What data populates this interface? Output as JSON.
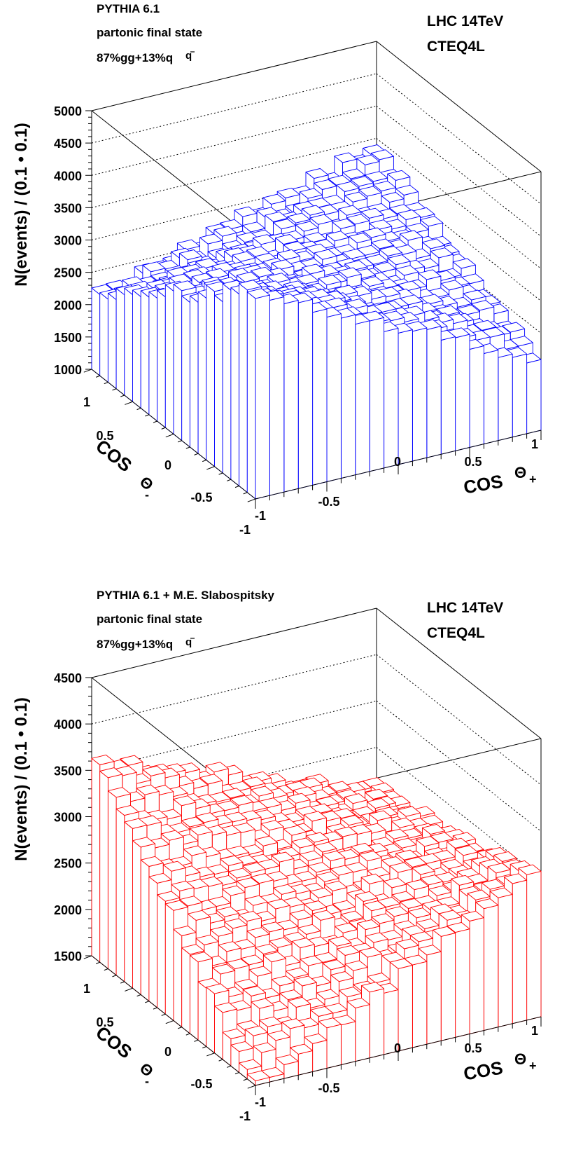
{
  "chart_data": [
    {
      "type": "lego3d",
      "labels": [
        "PYTHIA 6.1",
        "partonic final state",
        "87%gg+13%q",
        "q",
        "LHC 14TeV",
        "CTEQ4L"
      ],
      "ylabel": "N(events) / (0.1 • 0.1)",
      "xaxis": {
        "label": "COS",
        "symbol": "Θ",
        "subscript": "+",
        "ticks": [
          -1,
          -0.5,
          0,
          0.5,
          1
        ],
        "ticklabels": [
          "-1",
          "-0.5",
          "0",
          "0.5",
          "1"
        ]
      },
      "yaxis": {
        "label": "COS",
        "symbol": "Θ",
        "subscript": "-",
        "ticks": [
          -1,
          -0.5,
          0,
          0.5,
          1
        ],
        "ticklabels": [
          "-1",
          "-0.5",
          "0",
          "0.5",
          "1"
        ]
      },
      "zaxis": {
        "range": [
          1000,
          5000
        ],
        "ticks": [
          1000,
          1500,
          2000,
          2500,
          3000,
          3500,
          4000,
          4500,
          5000
        ],
        "ticklabels": [
          "1000",
          "1500",
          "2000",
          "2500",
          "3000",
          "3500",
          "4000",
          "4500",
          "5000"
        ]
      },
      "bins": {
        "nx": 20,
        "ny": 20,
        "range": [
          -1,
          1
        ]
      },
      "surface": {
        "type": "saddle",
        "base": 2980,
        "a": -200,
        "b": -180,
        "c": 900,
        "noise": 200,
        "seed": 7
      },
      "color": "#0000ff",
      "grid": true
    },
    {
      "type": "lego3d",
      "labels": [
        "PYTHIA 6.1 + M.E. Slabospitsky",
        "partonic final state",
        "87%gg+13%q",
        "q",
        "LHC 14TeV",
        "CTEQ4L"
      ],
      "ylabel": "N(events) / (0.1 • 0.1)",
      "xaxis": {
        "label": "COS",
        "symbol": "Θ",
        "subscript": "+",
        "ticks": [
          -1,
          -0.5,
          0,
          0.5,
          1
        ],
        "ticklabels": [
          "-1",
          "-0.5",
          "0",
          "0.5",
          "1"
        ]
      },
      "yaxis": {
        "label": "COS",
        "symbol": "Θ",
        "subscript": "-",
        "ticks": [
          -1,
          -0.5,
          0,
          0.5,
          1
        ],
        "ticklabels": [
          "-1",
          "-0.5",
          "0",
          "0.5",
          "1"
        ]
      },
      "zaxis": {
        "range": [
          1500,
          4500
        ],
        "ticks": [
          1500,
          2000,
          2500,
          3000,
          3500,
          4000,
          4500
        ],
        "ticklabels": [
          "1500",
          "2000",
          "2500",
          "3000",
          "3500",
          "4000",
          "4500"
        ]
      },
      "bins": {
        "nx": 20,
        "ny": 20,
        "range": [
          -1,
          1
        ]
      },
      "surface": {
        "type": "saddle",
        "base": 2700,
        "a": 120,
        "b": 450,
        "c": -700,
        "noise": 160,
        "seed": 11
      },
      "color": "#ff0000",
      "grid": true
    }
  ]
}
